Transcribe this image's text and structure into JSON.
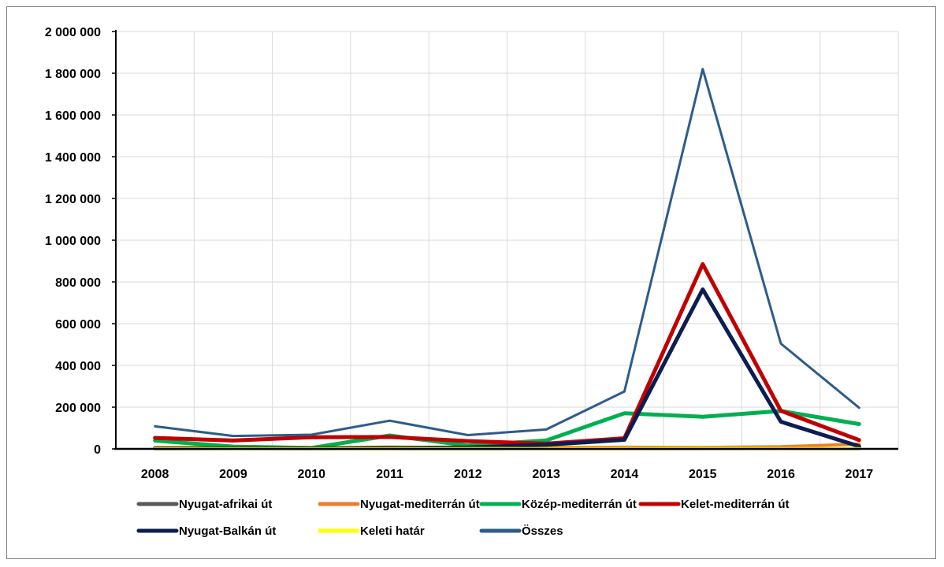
{
  "chart_data": {
    "type": "line",
    "x": [
      "2008",
      "2009",
      "2010",
      "2011",
      "2012",
      "2013",
      "2014",
      "2015",
      "2016",
      "2017"
    ],
    "ylim": [
      0,
      2000000
    ],
    "yticks": [
      0,
      200000,
      400000,
      600000,
      800000,
      1000000,
      1200000,
      1400000,
      1600000,
      1800000,
      2000000
    ],
    "ytick_labels": [
      "0",
      "200 000",
      "400 000",
      "600 000",
      "800 000",
      "1 000 000",
      "1 200 000",
      "1 400 000",
      "1 600 000",
      "1 800 000",
      "2 000 000"
    ],
    "grid": "vertical and horizontal",
    "legend_position": "bottom",
    "series": [
      {
        "name": "Nyugat-afrikai út",
        "color": "#595959",
        "values": [
          2000,
          2000,
          200,
          300,
          200,
          300,
          300,
          900,
          700,
          400
        ]
      },
      {
        "name": "Nyugat-mediterrán út",
        "color": "#ed7d31",
        "values": [
          6500,
          6600,
          5000,
          8400,
          6400,
          6800,
          7800,
          7200,
          10200,
          23100
        ]
      },
      {
        "name": "Közép-mediterrán út",
        "color": "#00b050",
        "values": [
          39800,
          11000,
          4500,
          64300,
          15900,
          40300,
          170700,
          154000,
          181500,
          119000
        ]
      },
      {
        "name": "Kelet-mediterrán út",
        "color": "#c00000",
        "values": [
          52300,
          40000,
          55700,
          57000,
          37200,
          24800,
          50800,
          885400,
          182300,
          42300
        ]
      },
      {
        "name": "Nyugat-Balkán út",
        "color": "#0b1d51",
        "values": [
          2000,
          3000,
          2400,
          4700,
          6400,
          19900,
          43400,
          764000,
          130300,
          12200
        ]
      },
      {
        "name": "Keleti határ",
        "color": "#ffff00",
        "values": [
          1300,
          1300,
          1100,
          1000,
          1600,
          1300,
          1300,
          1900,
          1300,
          800
        ]
      },
      {
        "name": "Összes",
        "color": "#2e5c8a",
        "values": [
          108000,
          62000,
          68000,
          135000,
          66000,
          93000,
          275000,
          1820000,
          504000,
          197000
        ]
      }
    ]
  }
}
